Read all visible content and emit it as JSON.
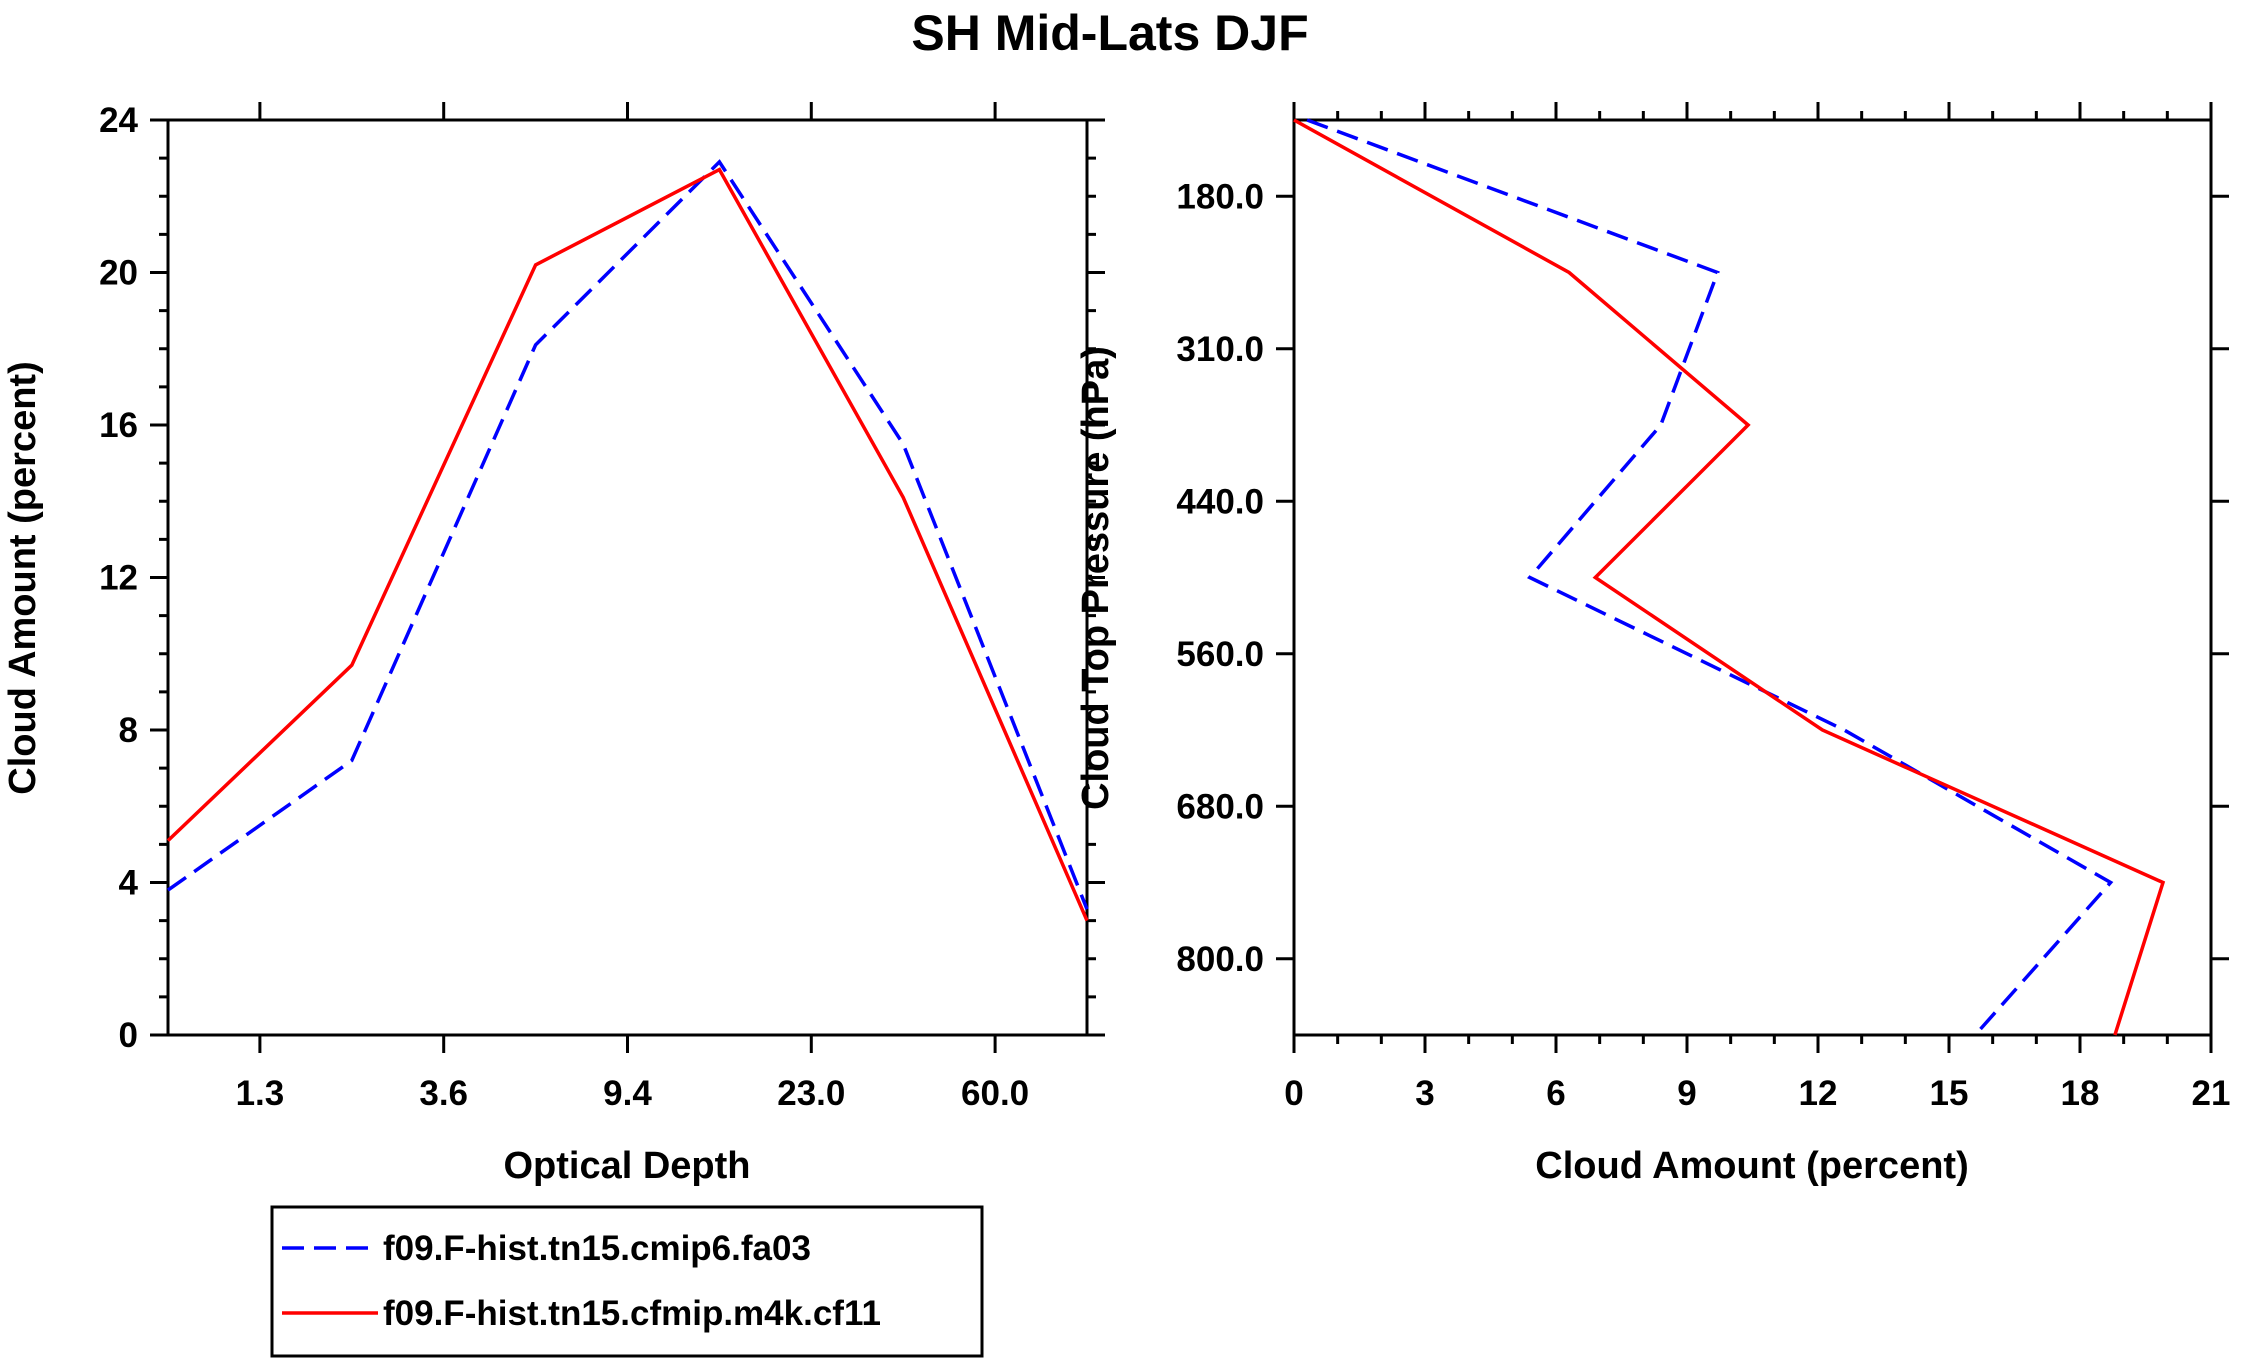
{
  "chart_data": [
    {
      "type": "line",
      "title": "SH Mid-Lats DJF",
      "xlabel": "Optical Depth",
      "ylabel": "Cloud Amount (percent)",
      "ylim": [
        0,
        24
      ],
      "y_ticks": [
        "0",
        "4",
        "8",
        "12",
        "16",
        "20",
        "24"
      ],
      "x_ticks": [
        "1.3",
        "3.6",
        "9.4",
        "23.0",
        "60.0"
      ],
      "x_positions": [
        0,
        1,
        2,
        3,
        4,
        5
      ],
      "x_tick_positions": [
        0.5,
        1.5,
        2.5,
        3.5,
        4.5
      ],
      "series": [
        {
          "name": "f09.F-hist.tn15.cmip6.fa03",
          "color": "#0000ff",
          "dash": "dashed",
          "values": [
            3.8,
            7.2,
            18.1,
            22.9,
            15.5,
            3.3
          ]
        },
        {
          "name": "f09.F-hist.tn15.cfmip.m4k.cf11",
          "color": "#ff0000",
          "dash": "solid",
          "values": [
            5.1,
            9.7,
            20.2,
            22.7,
            14.1,
            3.0
          ]
        }
      ]
    },
    {
      "type": "line",
      "xlabel": "Cloud Amount (percent)",
      "ylabel": "Cloud Top Pressure (hPa)",
      "xlim": [
        0,
        21
      ],
      "x_ticks": [
        "0",
        "3",
        "6",
        "9",
        "12",
        "15",
        "18",
        "21"
      ],
      "y_ticks": [
        "180.0",
        "310.0",
        "440.0",
        "560.0",
        "680.0",
        "800.0"
      ],
      "y_positions": [
        0,
        1,
        2,
        3,
        4,
        5,
        6
      ],
      "y_tick_positions": [
        0.5,
        1.5,
        2.5,
        3.5,
        4.5,
        5.5
      ],
      "series": [
        {
          "name": "f09.F-hist.tn15.cmip6.fa03",
          "color": "#0000ff",
          "dash": "dashed",
          "values": [
            0.3,
            9.7,
            8.4,
            5.4,
            12.6,
            18.7,
            15.6
          ]
        },
        {
          "name": "f09.F-hist.tn15.cfmip.m4k.cf11",
          "color": "#ff0000",
          "dash": "solid",
          "values": [
            0.0,
            6.3,
            10.4,
            6.9,
            12.1,
            19.9,
            18.8
          ]
        }
      ]
    }
  ],
  "legend": {
    "placement": "bottom-left",
    "entries": [
      "f09.F-hist.tn15.cmip6.fa03",
      "f09.F-hist.tn15.cfmip.m4k.cf11"
    ]
  }
}
